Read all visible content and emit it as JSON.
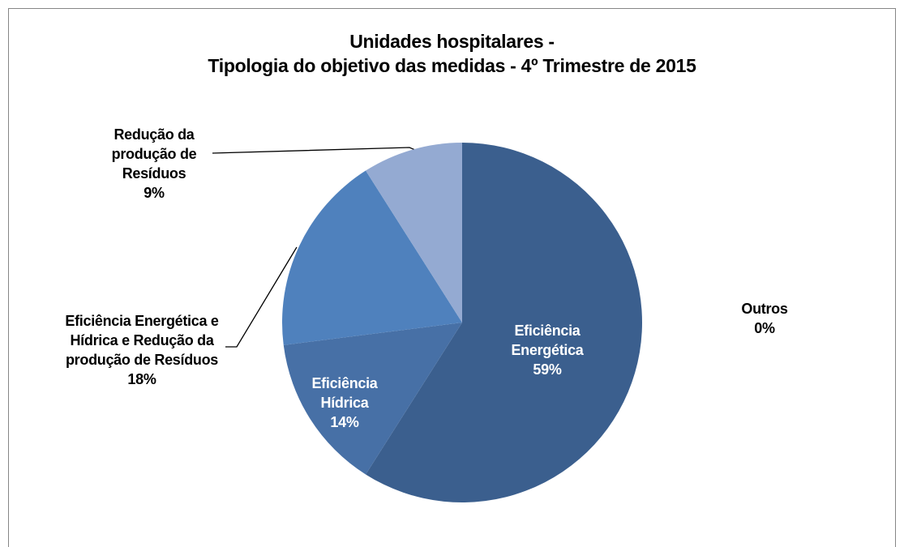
{
  "chart_data": {
    "type": "pie",
    "title": [
      "Unidades hospitalares -",
      "Tipologia do objetivo das medidas - 4º Trimestre de 2015"
    ],
    "categories": [
      "Eficiência Energética",
      "Eficiência Hídrica",
      "Eficiência Energética e Hídrica e Redução da produção de Resíduos",
      "Redução da produção de Resíduos",
      "Outros"
    ],
    "values": [
      59,
      14,
      18,
      9,
      0
    ],
    "value_labels": [
      "59%",
      "14%",
      "18%",
      "9%",
      "0%"
    ],
    "colors": [
      "#3b5f8e",
      "#4770a6",
      "#4f81bd",
      "#94aad2",
      "#c3d0e6"
    ]
  }
}
